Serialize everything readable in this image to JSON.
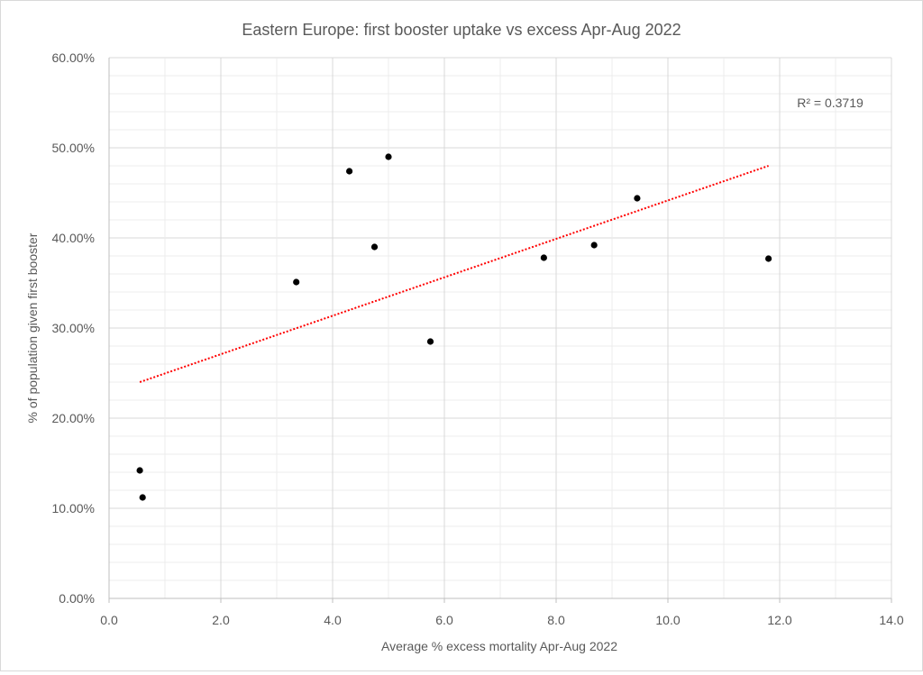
{
  "chart_data": {
    "type": "scatter",
    "title": "Eastern Europe: first booster uptake vs excess Apr-Aug 2022",
    "xlabel": "Average % excess mortality Apr-Aug 2022",
    "ylabel": "% of population given first booster",
    "xlim": [
      0,
      14
    ],
    "ylim": [
      0,
      60
    ],
    "x_ticks": [
      0,
      2,
      4,
      6,
      8,
      10,
      12,
      14
    ],
    "x_tick_labels": [
      "0.0",
      "2.0",
      "4.0",
      "6.0",
      "8.0",
      "10.0",
      "12.0",
      "14.0"
    ],
    "y_ticks": [
      0,
      10,
      20,
      30,
      40,
      50,
      60
    ],
    "y_tick_labels": [
      "0.00%",
      "10.00%",
      "20.00%",
      "30.00%",
      "40.00%",
      "50.00%",
      "60.00%"
    ],
    "grid": true,
    "legend": "none",
    "series": [
      {
        "x": [
          0.55,
          0.6,
          3.35,
          4.3,
          4.75,
          5.0,
          5.75,
          7.78,
          8.68,
          9.45,
          11.8
        ],
        "y": [
          14.2,
          11.2,
          35.1,
          47.4,
          39.0,
          49.0,
          28.5,
          37.8,
          39.2,
          44.4,
          37.7
        ],
        "color": "#000000"
      }
    ],
    "trendline": {
      "type": "linear",
      "x_range": [
        0.55,
        11.8
      ],
      "y_range": [
        24.0,
        48.0
      ],
      "color": "#ff0000",
      "style": "dotted",
      "label": "R² = 0.3719"
    }
  }
}
